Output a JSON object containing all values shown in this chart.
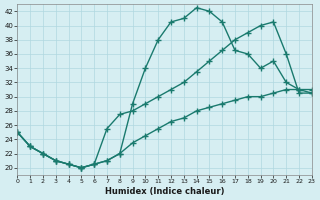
{
  "xlabel": "Humidex (Indice chaleur)",
  "ylabel": "",
  "background_color": "#d6eef2",
  "grid_color": "#b0d8e0",
  "line_color": "#1a7a6e",
  "xlim": [
    0,
    23
  ],
  "ylim": [
    19,
    43
  ],
  "yticks": [
    20,
    22,
    24,
    26,
    28,
    30,
    32,
    34,
    36,
    38,
    40,
    42
  ],
  "xticks": [
    0,
    1,
    2,
    3,
    4,
    5,
    6,
    7,
    8,
    9,
    10,
    11,
    12,
    13,
    14,
    15,
    16,
    17,
    18,
    19,
    20,
    21,
    22,
    23
  ],
  "curve1_x": [
    0,
    1,
    2,
    3,
    4,
    5,
    6,
    7,
    8,
    9,
    10,
    11,
    12,
    13,
    14,
    15,
    16,
    17,
    18,
    19,
    20,
    21,
    22,
    23
  ],
  "curve1_y": [
    25,
    23,
    22,
    21,
    20.5,
    20,
    20.5,
    21,
    22,
    29,
    34,
    38,
    40.5,
    41,
    42.5,
    42,
    40.5,
    36.5,
    36,
    34,
    35,
    32,
    31,
    30.5
  ],
  "curve2_x": [
    0,
    1,
    2,
    3,
    4,
    5,
    6,
    7,
    8,
    9,
    10,
    11,
    12,
    13,
    14,
    15,
    16,
    17,
    18,
    19,
    20,
    21,
    22,
    23
  ],
  "curve2_y": [
    25,
    23,
    22,
    21,
    20.5,
    20,
    20.5,
    25.5,
    27.5,
    28,
    29,
    30,
    31,
    32,
    33.5,
    35,
    36.5,
    38,
    39,
    40,
    40.5,
    36,
    30.5,
    30.5
  ],
  "curve3_x": [
    0,
    1,
    2,
    3,
    4,
    5,
    6,
    7,
    8,
    9,
    10,
    11,
    12,
    13,
    14,
    15,
    16,
    17,
    18,
    19,
    20,
    21,
    22,
    23
  ],
  "curve3_y": [
    25,
    23,
    22,
    21,
    20.5,
    20,
    20.5,
    21,
    22,
    23.5,
    24.5,
    25.5,
    26.5,
    27,
    28,
    28.5,
    29,
    29.5,
    30,
    30,
    30.5,
    31,
    31,
    31
  ]
}
